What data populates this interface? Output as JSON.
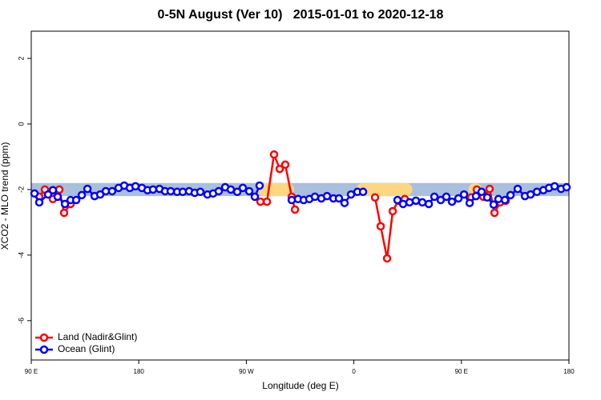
{
  "chart_data": {
    "type": "line",
    "title": "0-5N August (Ver 10)   2015-01-01 to 2020-12-18",
    "xlabel": "Longitude (deg E)",
    "ylabel": "XCO2 - MLO trend (ppm)",
    "xlim": [
      90,
      540
    ],
    "ylim": [
      -7.2,
      2.83
    ],
    "xticks": [
      {
        "value": 90,
        "label": "90 E"
      },
      180,
      {
        "value": 270,
        "label": "90 W"
      },
      {
        "value": 360,
        "label": "0"
      },
      {
        "value": 450,
        "label": "90 E"
      },
      {
        "value": 540,
        "label": "180"
      }
    ],
    "yticks": [
      2,
      0,
      -2,
      -4,
      -6
    ],
    "legend": "bottom-left",
    "band": {
      "range": [
        -2.2,
        -1.8
      ],
      "color": "#a9bfdc",
      "land_spans": [
        [
          279,
          310
        ],
        [
          362,
          409
        ],
        [
          456,
          467
        ]
      ],
      "land_color": "#fcd77f"
    },
    "series": [
      {
        "name": "Land (Nadir&Glint)",
        "color": "#ff0000",
        "x": [
          96.7,
          101.4,
          108.1,
          113.5,
          117.5,
          122.9,
          null,
          281.8,
          287.2,
          293.2,
          297.9,
          302.6,
          308,
          310.7,
          null,
          377.7,
          382.4,
          387.8,
          392.5,
          397.2,
          402.6,
          null,
          458.2,
          462.9,
          468.3,
          473.6,
          477.7,
          482.4,
          487.1
        ],
        "values": [
          -2.22,
          -2.0,
          -2.29,
          -2.0,
          -2.71,
          -2.44,
          null,
          -2.37,
          -2.37,
          -0.93,
          -1.37,
          -1.24,
          -2.22,
          -2.61,
          null,
          -2.24,
          -3.12,
          -4.1,
          -2.66,
          -2.34,
          -2.29,
          null,
          -2.24,
          -2.0,
          -2.22,
          -1.98,
          -2.71,
          -2.39,
          -2.34
        ]
      },
      {
        "name": "Ocean (Glint)",
        "color": "#0000ff",
        "x": [
          92.7,
          96.7,
          104.1,
          108.1,
          112.1,
          118.2,
          122.9,
          127.6,
          132.3,
          137,
          143,
          147.7,
          152.4,
          157.7,
          163.1,
          167.8,
          172.5,
          177.2,
          182.6,
          187.3,
          191.9,
          197.3,
          202,
          206.7,
          212.1,
          216.8,
          222.1,
          226.8,
          231.5,
          237.5,
          242.2,
          246.9,
          252.3,
          257,
          262.4,
          267.1,
          272.4,
          277.1,
          281.1,
          null,
          308,
          313.3,
          318,
          322.7,
          327.4,
          332.8,
          337.5,
          342.9,
          347.5,
          352.2,
          357.6,
          363,
          367.7,
          null,
          396.5,
          401.2,
          406.6,
          411.9,
          417.3,
          422.7,
          427.4,
          432.7,
          437.4,
          442.1,
          447.5,
          452.2,
          456.9,
          462.2,
          466.9,
          471.6,
          477,
          481,
          486.4,
          491.1,
          497.1,
          503.2,
          507.9,
          513.2,
          518.6,
          523.3,
          528,
          533.4,
          538
        ],
        "values": [
          -2.12,
          -2.39,
          -2.15,
          -2.02,
          -2.22,
          -2.44,
          -2.32,
          -2.32,
          -2.17,
          -1.98,
          -2.2,
          -2.15,
          -2.05,
          -2.05,
          -1.95,
          -1.88,
          -1.95,
          -1.9,
          -1.95,
          -2.02,
          -2.0,
          -1.98,
          -2.05,
          -2.05,
          -2.07,
          -2.07,
          -2.05,
          -2.1,
          -2.07,
          -2.15,
          -2.12,
          -2.05,
          -1.93,
          -2.0,
          -2.07,
          -1.95,
          -2.05,
          -2.22,
          -1.88,
          null,
          -2.32,
          -2.29,
          -2.32,
          -2.29,
          -2.22,
          -2.27,
          -2.2,
          -2.27,
          -2.27,
          -2.41,
          -2.15,
          -2.07,
          -2.07,
          null,
          -2.32,
          -2.44,
          -2.39,
          -2.34,
          -2.39,
          -2.44,
          -2.22,
          -2.32,
          -2.22,
          -2.37,
          -2.27,
          -2.15,
          -2.41,
          -2.2,
          -2.07,
          -2.24,
          -2.46,
          -2.29,
          -2.32,
          -2.17,
          -1.98,
          -2.2,
          -2.15,
          -2.07,
          -2.02,
          -1.95,
          -1.9,
          -1.98,
          -1.93
        ]
      }
    ]
  }
}
